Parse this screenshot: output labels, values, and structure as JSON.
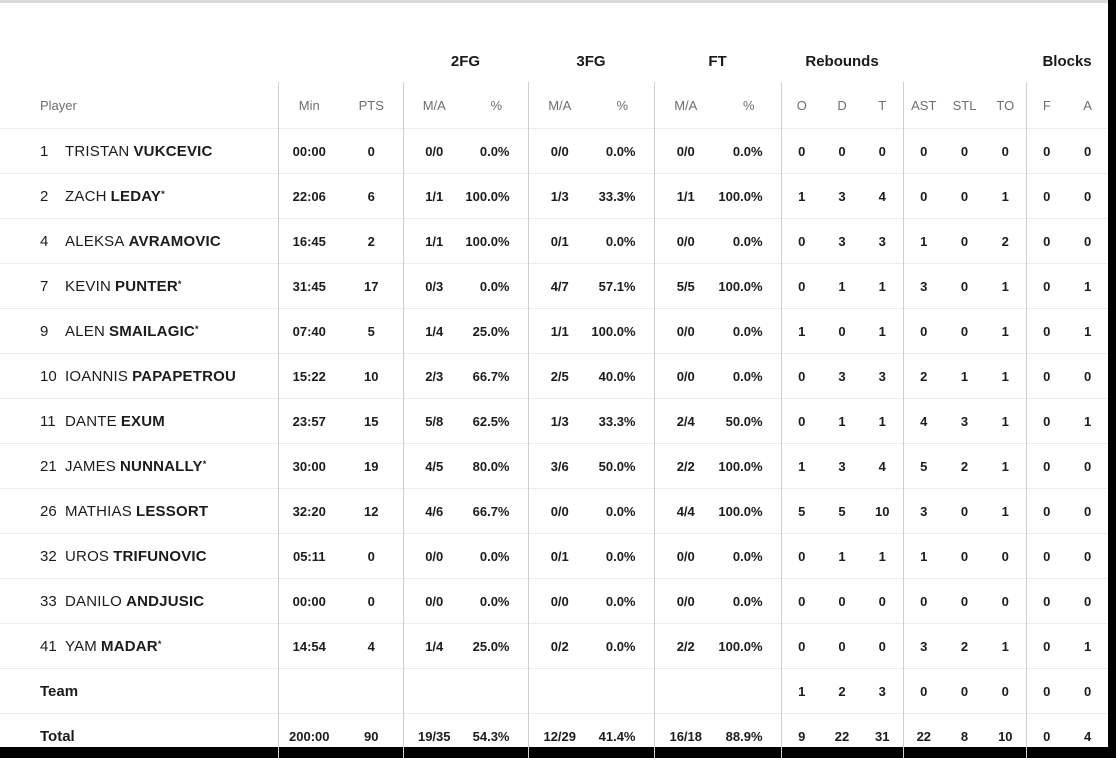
{
  "colors": {
    "page_background": "#000000",
    "card_background": "#ffffff",
    "card_top_border": "#d9d9d9",
    "header_text": "#6e6e6e",
    "body_text": "#1c1c1c",
    "column_divider": "#cfcfcf",
    "row_divider": "#ececec"
  },
  "table": {
    "starter_mark": "*",
    "group_headers": {
      "fg2": "2FG",
      "fg3": "3FG",
      "ft": "FT",
      "rebounds": "Rebounds",
      "blocks": "Blocks"
    },
    "columns": {
      "player": "Player",
      "min": "Min",
      "pts": "PTS",
      "ma": "M/A",
      "pct": "%",
      "o": "O",
      "d": "D",
      "t": "T",
      "ast": "AST",
      "stl": "STL",
      "to": "TO",
      "f": "F",
      "a": "A"
    },
    "rows": [
      {
        "num": "1",
        "first": "TRISTAN",
        "last": "VUKCEVIC",
        "starter": false,
        "min": "00:00",
        "pts": "0",
        "fg2ma": "0/0",
        "fg2pct": "0.0%",
        "fg3ma": "0/0",
        "fg3pct": "0.0%",
        "ftma": "0/0",
        "ftpct": "0.0%",
        "o": "0",
        "d": "0",
        "t": "0",
        "ast": "0",
        "stl": "0",
        "to": "0",
        "f": "0",
        "a": "0"
      },
      {
        "num": "2",
        "first": "ZACH",
        "last": "LEDAY",
        "starter": true,
        "min": "22:06",
        "pts": "6",
        "fg2ma": "1/1",
        "fg2pct": "100.0%",
        "fg3ma": "1/3",
        "fg3pct": "33.3%",
        "ftma": "1/1",
        "ftpct": "100.0%",
        "o": "1",
        "d": "3",
        "t": "4",
        "ast": "0",
        "stl": "0",
        "to": "1",
        "f": "0",
        "a": "0"
      },
      {
        "num": "4",
        "first": "ALEKSA",
        "last": "AVRAMOVIC",
        "starter": false,
        "min": "16:45",
        "pts": "2",
        "fg2ma": "1/1",
        "fg2pct": "100.0%",
        "fg3ma": "0/1",
        "fg3pct": "0.0%",
        "ftma": "0/0",
        "ftpct": "0.0%",
        "o": "0",
        "d": "3",
        "t": "3",
        "ast": "1",
        "stl": "0",
        "to": "2",
        "f": "0",
        "a": "0"
      },
      {
        "num": "7",
        "first": "KEVIN",
        "last": "PUNTER",
        "starter": true,
        "min": "31:45",
        "pts": "17",
        "fg2ma": "0/3",
        "fg2pct": "0.0%",
        "fg3ma": "4/7",
        "fg3pct": "57.1%",
        "ftma": "5/5",
        "ftpct": "100.0%",
        "o": "0",
        "d": "1",
        "t": "1",
        "ast": "3",
        "stl": "0",
        "to": "1",
        "f": "0",
        "a": "1"
      },
      {
        "num": "9",
        "first": "ALEN",
        "last": "SMAILAGIC",
        "starter": true,
        "min": "07:40",
        "pts": "5",
        "fg2ma": "1/4",
        "fg2pct": "25.0%",
        "fg3ma": "1/1",
        "fg3pct": "100.0%",
        "ftma": "0/0",
        "ftpct": "0.0%",
        "o": "1",
        "d": "0",
        "t": "1",
        "ast": "0",
        "stl": "0",
        "to": "1",
        "f": "0",
        "a": "1"
      },
      {
        "num": "10",
        "first": "IOANNIS",
        "last": "PAPAPETROU",
        "starter": false,
        "min": "15:22",
        "pts": "10",
        "fg2ma": "2/3",
        "fg2pct": "66.7%",
        "fg3ma": "2/5",
        "fg3pct": "40.0%",
        "ftma": "0/0",
        "ftpct": "0.0%",
        "o": "0",
        "d": "3",
        "t": "3",
        "ast": "2",
        "stl": "1",
        "to": "1",
        "f": "0",
        "a": "0"
      },
      {
        "num": "11",
        "first": "DANTE",
        "last": "EXUM",
        "starter": false,
        "min": "23:57",
        "pts": "15",
        "fg2ma": "5/8",
        "fg2pct": "62.5%",
        "fg3ma": "1/3",
        "fg3pct": "33.3%",
        "ftma": "2/4",
        "ftpct": "50.0%",
        "o": "0",
        "d": "1",
        "t": "1",
        "ast": "4",
        "stl": "3",
        "to": "1",
        "f": "0",
        "a": "1"
      },
      {
        "num": "21",
        "first": "JAMES",
        "last": "NUNNALLY",
        "starter": true,
        "min": "30:00",
        "pts": "19",
        "fg2ma": "4/5",
        "fg2pct": "80.0%",
        "fg3ma": "3/6",
        "fg3pct": "50.0%",
        "ftma": "2/2",
        "ftpct": "100.0%",
        "o": "1",
        "d": "3",
        "t": "4",
        "ast": "5",
        "stl": "2",
        "to": "1",
        "f": "0",
        "a": "0"
      },
      {
        "num": "26",
        "first": "MATHIAS",
        "last": "LESSORT",
        "starter": false,
        "min": "32:20",
        "pts": "12",
        "fg2ma": "4/6",
        "fg2pct": "66.7%",
        "fg3ma": "0/0",
        "fg3pct": "0.0%",
        "ftma": "4/4",
        "ftpct": "100.0%",
        "o": "5",
        "d": "5",
        "t": "10",
        "ast": "3",
        "stl": "0",
        "to": "1",
        "f": "0",
        "a": "0"
      },
      {
        "num": "32",
        "first": "UROS",
        "last": "TRIFUNOVIC",
        "starter": false,
        "min": "05:11",
        "pts": "0",
        "fg2ma": "0/0",
        "fg2pct": "0.0%",
        "fg3ma": "0/1",
        "fg3pct": "0.0%",
        "ftma": "0/0",
        "ftpct": "0.0%",
        "o": "0",
        "d": "1",
        "t": "1",
        "ast": "1",
        "stl": "0",
        "to": "0",
        "f": "0",
        "a": "0"
      },
      {
        "num": "33",
        "first": "DANILO",
        "last": "ANDJUSIC",
        "starter": false,
        "min": "00:00",
        "pts": "0",
        "fg2ma": "0/0",
        "fg2pct": "0.0%",
        "fg3ma": "0/0",
        "fg3pct": "0.0%",
        "ftma": "0/0",
        "ftpct": "0.0%",
        "o": "0",
        "d": "0",
        "t": "0",
        "ast": "0",
        "stl": "0",
        "to": "0",
        "f": "0",
        "a": "0"
      },
      {
        "num": "41",
        "first": "YAM",
        "last": "MADAR",
        "starter": true,
        "min": "14:54",
        "pts": "4",
        "fg2ma": "1/4",
        "fg2pct": "25.0%",
        "fg3ma": "0/2",
        "fg3pct": "0.0%",
        "ftma": "2/2",
        "ftpct": "100.0%",
        "o": "0",
        "d": "0",
        "t": "0",
        "ast": "3",
        "stl": "2",
        "to": "1",
        "f": "0",
        "a": "1"
      }
    ],
    "team_row": {
      "label": "Team",
      "min": "",
      "pts": "",
      "fg2ma": "",
      "fg2pct": "",
      "fg3ma": "",
      "fg3pct": "",
      "ftma": "",
      "ftpct": "",
      "o": "1",
      "d": "2",
      "t": "3",
      "ast": "0",
      "stl": "0",
      "to": "0",
      "f": "0",
      "a": "0"
    },
    "total_row": {
      "label": "Total",
      "min": "200:00",
      "pts": "90",
      "fg2ma": "19/35",
      "fg2pct": "54.3%",
      "fg3ma": "12/29",
      "fg3pct": "41.4%",
      "ftma": "16/18",
      "ftpct": "88.9%",
      "o": "9",
      "d": "22",
      "t": "31",
      "ast": "22",
      "stl": "8",
      "to": "10",
      "f": "0",
      "a": "4"
    }
  }
}
